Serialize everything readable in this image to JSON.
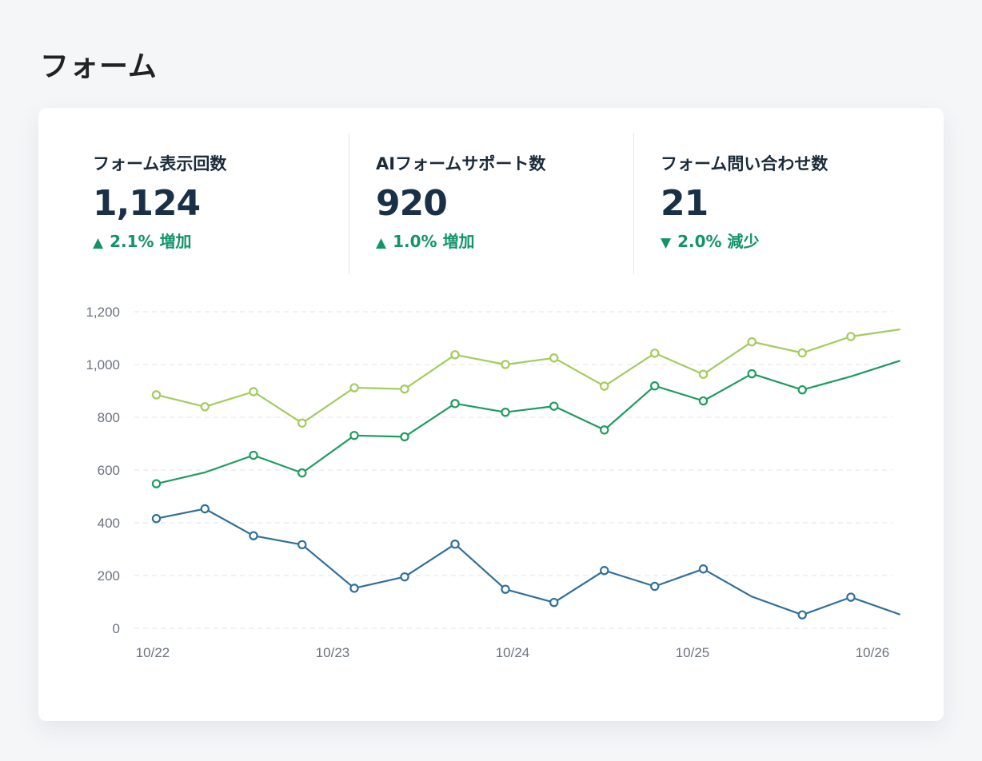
{
  "page": {
    "title": "フォーム"
  },
  "stats": [
    {
      "label": "フォーム表示回数",
      "value": "1,124",
      "arrow": "▲",
      "delta": "2.1% 増加"
    },
    {
      "label": "AIフォームサポート数",
      "value": "920",
      "arrow": "▲",
      "delta": "1.0% 増加"
    },
    {
      "label": "フォーム問い合わせ数",
      "value": "21",
      "arrow": "▼",
      "delta": "2.0% 減少"
    }
  ],
  "colors": {
    "accent": "#12936a",
    "grid": "#dfe3e8"
  },
  "chart_data": {
    "type": "line",
    "ylim": [
      0,
      1200
    ],
    "yticks": [
      0,
      200,
      400,
      600,
      800,
      1000,
      1200
    ],
    "ytick_labels": [
      "0",
      "200",
      "400",
      "600",
      "800",
      "1,000",
      "1,200"
    ],
    "xlim": [
      0,
      4.15
    ],
    "xticks": [
      0,
      1,
      2,
      3,
      4
    ],
    "xtick_labels": [
      "10/22",
      "10/23",
      "10/24",
      "10/25",
      "10/26"
    ],
    "grid": true,
    "series": [
      {
        "color": "#a3cc5b",
        "x": [
          0.02,
          0.29,
          0.56,
          0.83,
          1.12,
          1.4,
          1.68,
          1.96,
          2.23,
          2.51,
          2.79,
          3.06,
          3.33,
          3.61,
          3.88,
          4.15
        ],
        "values": [
          885,
          840,
          897,
          778,
          912,
          907,
          1037,
          1000,
          1025,
          918,
          1043,
          963,
          1086,
          1044,
          1106,
          1133
        ],
        "markers": [
          true,
          true,
          true,
          true,
          true,
          true,
          true,
          true,
          true,
          true,
          true,
          true,
          true,
          true,
          true,
          false
        ]
      },
      {
        "color": "#1e9c60",
        "x": [
          0.02,
          0.29,
          0.56,
          0.83,
          1.12,
          1.4,
          1.68,
          1.96,
          2.23,
          2.51,
          2.79,
          3.06,
          3.33,
          3.61,
          3.88,
          4.15
        ],
        "values": [
          548,
          591,
          656,
          589,
          731,
          726,
          852,
          819,
          842,
          752,
          919,
          862,
          965,
          904,
          955,
          1014
        ],
        "markers": [
          true,
          false,
          true,
          true,
          true,
          true,
          true,
          true,
          true,
          true,
          true,
          true,
          true,
          true,
          false,
          false
        ]
      },
      {
        "color": "#2f6f9a",
        "x": [
          0.02,
          0.29,
          0.56,
          0.83,
          1.12,
          1.4,
          1.68,
          1.96,
          2.23,
          2.51,
          2.79,
          3.06,
          3.33,
          3.61,
          3.88,
          4.15
        ],
        "values": [
          416,
          453,
          351,
          317,
          152,
          195,
          319,
          148,
          98,
          219,
          159,
          225,
          120,
          51,
          118,
          53
        ],
        "markers": [
          true,
          true,
          true,
          true,
          true,
          true,
          true,
          true,
          true,
          true,
          true,
          true,
          false,
          true,
          true,
          false
        ]
      }
    ]
  }
}
